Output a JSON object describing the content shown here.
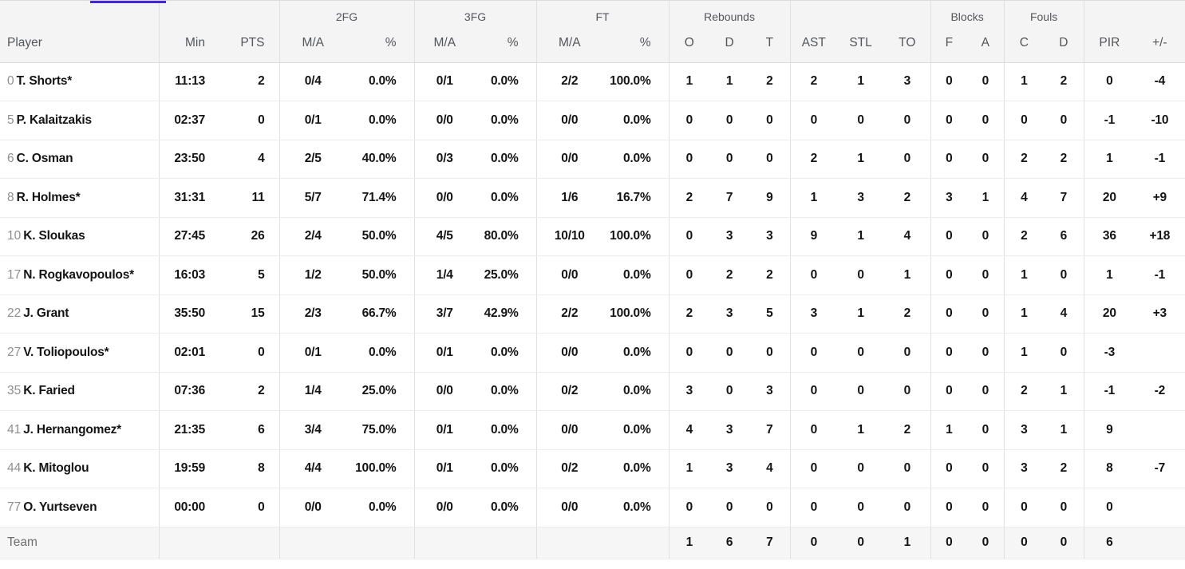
{
  "page": {
    "tab_indicator_color": "#4526e0"
  },
  "table": {
    "groups": {
      "fg2": "2FG",
      "fg3": "3FG",
      "ft": "FT",
      "rebounds": "Rebounds",
      "blocks": "Blocks",
      "fouls": "Fouls"
    },
    "header": {
      "player": "Player",
      "min": "Min",
      "pts": "PTS",
      "ma": "M/A",
      "pct": "%",
      "reb_o": "O",
      "reb_d": "D",
      "reb_t": "T",
      "ast": "AST",
      "stl": "STL",
      "to": "TO",
      "blk_f": "F",
      "blk_a": "A",
      "foul_c": "C",
      "foul_d": "D",
      "pir": "PIR",
      "plus_minus": "+/-"
    },
    "rows": [
      {
        "num": "0",
        "name": "T. Shorts*",
        "team": false,
        "stats": [
          "11:13",
          "2",
          "0/4",
          "0.0%",
          "0/1",
          "0.0%",
          "2/2",
          "100.0%",
          "1",
          "1",
          "2",
          "2",
          "1",
          "3",
          "0",
          "0",
          "1",
          "2",
          "0",
          "-4"
        ]
      },
      {
        "num": "5",
        "name": "P. Kalaitzakis",
        "team": false,
        "stats": [
          "02:37",
          "0",
          "0/1",
          "0.0%",
          "0/0",
          "0.0%",
          "0/0",
          "0.0%",
          "0",
          "0",
          "0",
          "0",
          "0",
          "0",
          "0",
          "0",
          "0",
          "0",
          "-1",
          "-10"
        ]
      },
      {
        "num": "6",
        "name": "C. Osman",
        "team": false,
        "stats": [
          "23:50",
          "4",
          "2/5",
          "40.0%",
          "0/3",
          "0.0%",
          "0/0",
          "0.0%",
          "0",
          "0",
          "0",
          "2",
          "1",
          "0",
          "0",
          "0",
          "2",
          "2",
          "1",
          "-1"
        ]
      },
      {
        "num": "8",
        "name": "R. Holmes*",
        "team": false,
        "stats": [
          "31:31",
          "11",
          "5/7",
          "71.4%",
          "0/0",
          "0.0%",
          "1/6",
          "16.7%",
          "2",
          "7",
          "9",
          "1",
          "3",
          "2",
          "3",
          "1",
          "4",
          "7",
          "20",
          "+9"
        ]
      },
      {
        "num": "10",
        "name": "K. Sloukas",
        "team": false,
        "stats": [
          "27:45",
          "26",
          "2/4",
          "50.0%",
          "4/5",
          "80.0%",
          "10/10",
          "100.0%",
          "0",
          "3",
          "3",
          "9",
          "1",
          "4",
          "0",
          "0",
          "2",
          "6",
          "36",
          "+18"
        ]
      },
      {
        "num": "17",
        "name": "N. Rogkavopoulos*",
        "team": false,
        "stats": [
          "16:03",
          "5",
          "1/2",
          "50.0%",
          "1/4",
          "25.0%",
          "0/0",
          "0.0%",
          "0",
          "2",
          "2",
          "0",
          "0",
          "1",
          "0",
          "0",
          "1",
          "0",
          "1",
          "-1"
        ]
      },
      {
        "num": "22",
        "name": "J. Grant",
        "team": false,
        "stats": [
          "35:50",
          "15",
          "2/3",
          "66.7%",
          "3/7",
          "42.9%",
          "2/2",
          "100.0%",
          "2",
          "3",
          "5",
          "3",
          "1",
          "2",
          "0",
          "0",
          "1",
          "4",
          "20",
          "+3"
        ]
      },
      {
        "num": "27",
        "name": "V. Toliopoulos*",
        "team": false,
        "stats": [
          "02:01",
          "0",
          "0/1",
          "0.0%",
          "0/1",
          "0.0%",
          "0/0",
          "0.0%",
          "0",
          "0",
          "0",
          "0",
          "0",
          "0",
          "0",
          "0",
          "1",
          "0",
          "-3",
          ""
        ]
      },
      {
        "num": "35",
        "name": "K. Faried",
        "team": false,
        "stats": [
          "07:36",
          "2",
          "1/4",
          "25.0%",
          "0/0",
          "0.0%",
          "0/2",
          "0.0%",
          "3",
          "0",
          "3",
          "0",
          "0",
          "0",
          "0",
          "0",
          "2",
          "1",
          "-1",
          "-2"
        ]
      },
      {
        "num": "41",
        "name": "J. Hernangomez*",
        "team": false,
        "stats": [
          "21:35",
          "6",
          "3/4",
          "75.0%",
          "0/1",
          "0.0%",
          "0/0",
          "0.0%",
          "4",
          "3",
          "7",
          "0",
          "1",
          "2",
          "1",
          "0",
          "3",
          "1",
          "9",
          ""
        ]
      },
      {
        "num": "44",
        "name": "K. Mitoglou",
        "team": false,
        "stats": [
          "19:59",
          "8",
          "4/4",
          "100.0%",
          "0/1",
          "0.0%",
          "0/2",
          "0.0%",
          "1",
          "3",
          "4",
          "0",
          "0",
          "0",
          "0",
          "0",
          "3",
          "2",
          "8",
          "-7"
        ]
      },
      {
        "num": "77",
        "name": "O. Yurtseven",
        "team": false,
        "stats": [
          "00:00",
          "0",
          "0/0",
          "0.0%",
          "0/0",
          "0.0%",
          "0/0",
          "0.0%",
          "0",
          "0",
          "0",
          "0",
          "0",
          "0",
          "0",
          "0",
          "0",
          "0",
          "0",
          ""
        ]
      },
      {
        "num": "",
        "name": "Team",
        "team": true,
        "stats": [
          "",
          "",
          "",
          "",
          "",
          "",
          "",
          "",
          "1",
          "6",
          "7",
          "0",
          "0",
          "1",
          "0",
          "0",
          "0",
          "0",
          "6",
          ""
        ]
      }
    ]
  }
}
